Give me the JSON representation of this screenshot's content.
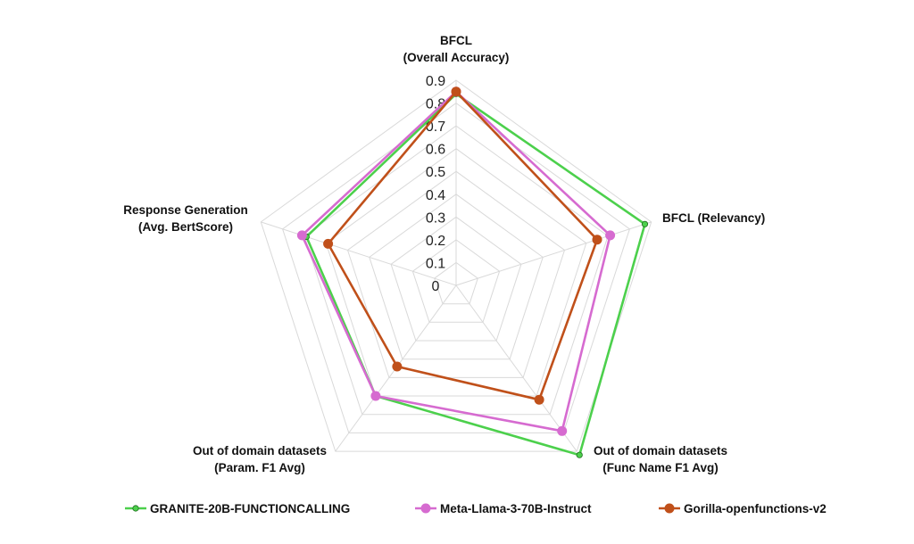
{
  "chart_data": {
    "type": "radar",
    "title": "",
    "axes": [
      {
        "label_lines": [
          "BFCL",
          "(Overall Accuracy)"
        ]
      },
      {
        "label_lines": [
          "BFCL (Relevancy)"
        ]
      },
      {
        "label_lines": [
          "Out of domain datasets",
          "(Func Name F1 Avg)"
        ]
      },
      {
        "label_lines": [
          "Out of domain datasets",
          "(Param. F1 Avg)"
        ]
      },
      {
        "label_lines": [
          "Response Generation",
          "(Avg. BertScore)"
        ]
      }
    ],
    "r_range": [
      0,
      0.9
    ],
    "r_ticks": [
      "0",
      "0.1",
      "0.2",
      "0.3",
      "0.4",
      "0.5",
      "0.6",
      "0.7",
      "0.8",
      "0.9"
    ],
    "grid": true,
    "legend_position": "bottom",
    "series": [
      {
        "name": "GRANITE-20B-FUNCTIONCALLING",
        "color": "#4cd04c",
        "marker": "small",
        "values": [
          0.84,
          0.87,
          0.92,
          0.6,
          0.69
        ]
      },
      {
        "name": "Meta-Llama-3-70B-Instruct",
        "color": "#d66bd0",
        "marker": "large",
        "values": [
          0.85,
          0.71,
          0.79,
          0.6,
          0.71
        ]
      },
      {
        "name": "Gorilla-openfunctions-v2",
        "color": "#c0501a",
        "marker": "large",
        "values": [
          0.85,
          0.65,
          0.62,
          0.44,
          0.59
        ]
      }
    ]
  }
}
